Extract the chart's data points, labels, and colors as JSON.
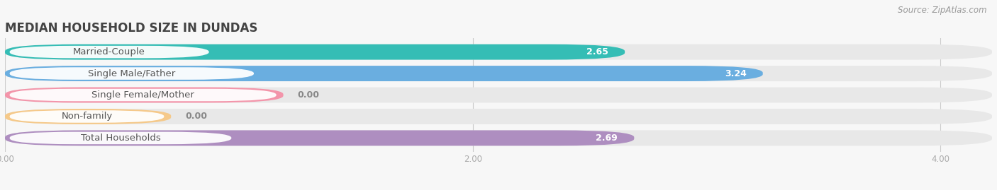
{
  "title": "MEDIAN HOUSEHOLD SIZE IN DUNDAS",
  "source": "Source: ZipAtlas.com",
  "categories": [
    "Married-Couple",
    "Single Male/Father",
    "Single Female/Mother",
    "Non-family",
    "Total Households"
  ],
  "values": [
    2.65,
    3.24,
    0.0,
    0.0,
    2.69
  ],
  "bar_colors": [
    "#35bdb5",
    "#6aaee0",
    "#f395aa",
    "#f5c98a",
    "#ae8ec0"
  ],
  "xlim_max": 4.22,
  "xticks": [
    0.0,
    2.0,
    4.0
  ],
  "xtick_labels": [
    "0.00",
    "2.00",
    "4.00"
  ],
  "background_color": "#f7f7f7",
  "bar_background_color": "#e8e8e8",
  "title_fontsize": 12,
  "source_fontsize": 8.5,
  "label_fontsize": 9.5,
  "value_fontsize": 9,
  "bar_height": 0.72,
  "pill_color": "#ffffff",
  "pill_alpha": 0.95,
  "value_text_color_outside": "#888888",
  "grid_color": "#cccccc",
  "tick_color": "#aaaaaa",
  "title_color": "#444444",
  "source_color": "#999999"
}
